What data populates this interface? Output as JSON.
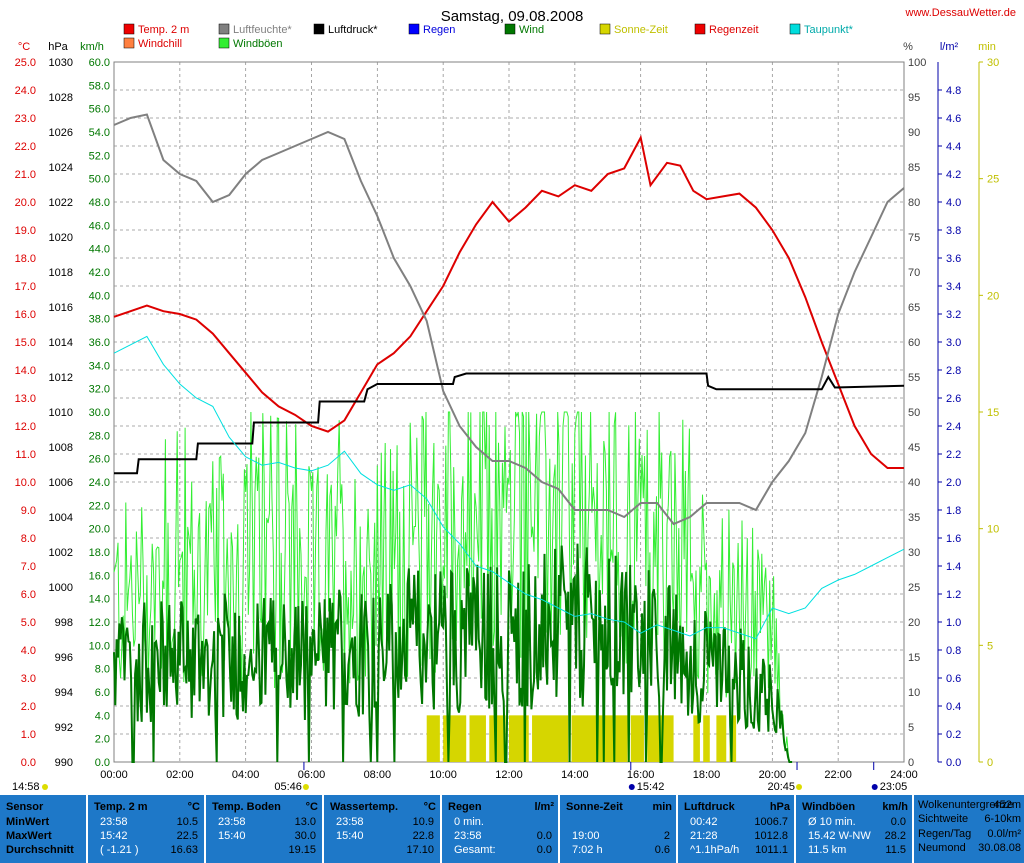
{
  "header": {
    "title": "Samstag, 09.08.2008",
    "site": "www.DessauWetter.de"
  },
  "colors": {
    "temp": "#dd0000",
    "humidity": "#808080",
    "pressure": "#000000",
    "rain": "#0000ff",
    "wind": "#007700",
    "gust": "#33ee33",
    "sun": "#d6d600",
    "dewpoint": "#00e0e0",
    "windchill": "#ff8040",
    "table_bg": "#1e78c8",
    "grid": "#808080"
  },
  "legend": [
    {
      "label": "Temp. 2 m",
      "color": "#ee0000",
      "text_color": "#dd0000"
    },
    {
      "label": "Luftfeuchte*",
      "color": "#808080",
      "text_color": "#808080"
    },
    {
      "label": "Luftdruck*",
      "color": "#000000",
      "text_color": "#000000"
    },
    {
      "label": "Regen",
      "color": "#0000ff",
      "text_color": "#0000dd"
    },
    {
      "label": "Wind",
      "color": "#007700",
      "text_color": "#007700"
    },
    {
      "label": "Sonne-Zeit",
      "color": "#d6d600",
      "text_color": "#c0c000"
    },
    {
      "label": "Regenzeit",
      "color": "#ee0000",
      "text_color": "#dd0000"
    },
    {
      "label": "Taupunkt*",
      "color": "#00dddd",
      "text_color": "#00aaaa"
    },
    {
      "label": "Windchill",
      "color": "#ff8040",
      "text_color": "#dd0000"
    },
    {
      "label": "Windböen",
      "color": "#33ee33",
      "text_color": "#007700"
    }
  ],
  "chart_data": {
    "type": "line",
    "x_ticks": [
      "00:00",
      "02:00",
      "04:00",
      "06:00",
      "08:00",
      "10:00",
      "12:00",
      "14:00",
      "16:00",
      "18:00",
      "20:00",
      "22:00",
      "24:00"
    ],
    "axes": {
      "temp": {
        "unit": "°C",
        "min": 0.0,
        "max": 25.0,
        "step": 1.0,
        "decimals": 1,
        "color": "#dd0000"
      },
      "pressure": {
        "unit": "hPa",
        "min": 990,
        "max": 1030,
        "step": 2,
        "decimals": 0,
        "color": "#000000"
      },
      "wind": {
        "unit": "km/h",
        "min": 0.0,
        "max": 60.0,
        "step": 2.0,
        "decimals": 1,
        "color": "#007700"
      },
      "humidity": {
        "unit": "%",
        "min": 0,
        "max": 100,
        "step": 5,
        "decimals": 0,
        "color": "#404040"
      },
      "rain": {
        "unit": "l/m²",
        "min": 0.0,
        "max": 5.0,
        "step": 0.2,
        "decimals": 1,
        "color": "#0000aa"
      },
      "sun": {
        "unit": "min",
        "min": 0,
        "max": 30,
        "step": 5,
        "decimals": 0,
        "color": "#c0c000"
      }
    },
    "series": [
      {
        "name": "Temp. 2 m",
        "axis": "temp",
        "color": "#dd0000",
        "points": [
          [
            0,
            15.9
          ],
          [
            0.5,
            16.1
          ],
          [
            1,
            16.3
          ],
          [
            1.5,
            16.1
          ],
          [
            2,
            16.0
          ],
          [
            2.5,
            15.8
          ],
          [
            3,
            15.3
          ],
          [
            3.5,
            14.6
          ],
          [
            4,
            13.9
          ],
          [
            4.5,
            13.2
          ],
          [
            5,
            12.7
          ],
          [
            5.5,
            12.4
          ],
          [
            6,
            12.0
          ],
          [
            6.5,
            11.8
          ],
          [
            7,
            12.2
          ],
          [
            7.5,
            13.2
          ],
          [
            8,
            14.2
          ],
          [
            8.5,
            14.6
          ],
          [
            9,
            15.2
          ],
          [
            9.5,
            16.1
          ],
          [
            10,
            17.0
          ],
          [
            10.5,
            18.2
          ],
          [
            11,
            19.2
          ],
          [
            11.5,
            20.0
          ],
          [
            12,
            19.3
          ],
          [
            12.5,
            19.8
          ],
          [
            13,
            20.4
          ],
          [
            13.5,
            20.2
          ],
          [
            14,
            20.6
          ],
          [
            14.5,
            20.4
          ],
          [
            15,
            21.0
          ],
          [
            15.5,
            21.2
          ],
          [
            16,
            22.3
          ],
          [
            16.3,
            20.6
          ],
          [
            16.8,
            21.4
          ],
          [
            17.2,
            21.3
          ],
          [
            17.6,
            20.4
          ],
          [
            18,
            20.1
          ],
          [
            18.5,
            20.2
          ],
          [
            19,
            20.3
          ],
          [
            19.5,
            19.8
          ],
          [
            20,
            19.0
          ],
          [
            20.5,
            18.0
          ],
          [
            21,
            16.6
          ],
          [
            21.5,
            15.0
          ],
          [
            22,
            13.5
          ],
          [
            22.5,
            12.0
          ],
          [
            23,
            11.0
          ],
          [
            23.5,
            10.5
          ],
          [
            24,
            10.5
          ]
        ]
      },
      {
        "name": "Luftfeuchte*",
        "axis": "humidity",
        "color": "#808080",
        "points": [
          [
            0,
            91
          ],
          [
            0.5,
            92
          ],
          [
            1,
            92.5
          ],
          [
            1.5,
            86
          ],
          [
            2,
            84
          ],
          [
            2.5,
            83
          ],
          [
            3,
            80
          ],
          [
            3.5,
            81
          ],
          [
            4,
            84
          ],
          [
            4.5,
            86
          ],
          [
            5,
            87
          ],
          [
            5.5,
            88
          ],
          [
            6,
            89
          ],
          [
            6.5,
            90
          ],
          [
            7,
            89
          ],
          [
            7.5,
            83
          ],
          [
            8,
            78
          ],
          [
            8.5,
            72
          ],
          [
            9,
            68
          ],
          [
            9.5,
            63
          ],
          [
            10,
            53
          ],
          [
            10.5,
            48
          ],
          [
            11,
            45
          ],
          [
            11.5,
            43
          ],
          [
            12,
            43
          ],
          [
            12.5,
            42
          ],
          [
            13,
            40
          ],
          [
            13.5,
            39
          ],
          [
            14,
            36
          ],
          [
            14.5,
            36
          ],
          [
            15,
            36
          ],
          [
            15.5,
            35
          ],
          [
            16,
            37
          ],
          [
            16.5,
            37
          ],
          [
            17,
            34
          ],
          [
            17.5,
            35
          ],
          [
            18,
            37
          ],
          [
            18.5,
            37
          ],
          [
            19,
            37
          ],
          [
            19.5,
            36
          ],
          [
            20,
            40
          ],
          [
            20.5,
            43
          ],
          [
            21,
            47
          ],
          [
            21.5,
            55
          ],
          [
            22,
            64
          ],
          [
            22.5,
            70
          ],
          [
            23,
            75
          ],
          [
            23.5,
            80
          ],
          [
            24,
            82
          ]
        ]
      },
      {
        "name": "Luftdruck*",
        "axis": "pressure",
        "color": "#000000",
        "points": [
          [
            0,
            1006.5
          ],
          [
            0.7,
            1006.5
          ],
          [
            0.75,
            1007.3
          ],
          [
            2.5,
            1007.3
          ],
          [
            2.55,
            1008.2
          ],
          [
            4.2,
            1008.2
          ],
          [
            4.25,
            1009.4
          ],
          [
            6.2,
            1009.4
          ],
          [
            6.25,
            1010.6
          ],
          [
            7.6,
            1010.6
          ],
          [
            7.7,
            1011.3
          ],
          [
            8,
            1011.6
          ],
          [
            10.3,
            1011.6
          ],
          [
            10.35,
            1012.0
          ],
          [
            10.7,
            1012.2
          ],
          [
            18,
            1012.2
          ],
          [
            18.05,
            1011.5
          ],
          [
            18.3,
            1011.3
          ],
          [
            21.5,
            1011.3
          ],
          [
            21.7,
            1012.0
          ],
          [
            21.9,
            1011.4
          ],
          [
            24,
            1011.5
          ]
        ]
      },
      {
        "name": "Taupunkt*",
        "axis": "temp",
        "color": "#00e0e0",
        "points": [
          [
            0,
            14.6
          ],
          [
            0.5,
            14.9
          ],
          [
            1,
            15.2
          ],
          [
            1.5,
            14.2
          ],
          [
            2,
            13.5
          ],
          [
            2.5,
            13.0
          ],
          [
            3,
            12.7
          ],
          [
            3.5,
            11.6
          ],
          [
            4,
            10.9
          ],
          [
            4.5,
            10.6
          ],
          [
            5,
            10.7
          ],
          [
            5.5,
            10.5
          ],
          [
            6,
            10.4
          ],
          [
            6.5,
            10.6
          ],
          [
            7,
            11.1
          ],
          [
            7.5,
            10.3
          ],
          [
            8,
            9.9
          ],
          [
            8.5,
            9.7
          ],
          [
            9,
            9.9
          ],
          [
            9.5,
            9.4
          ],
          [
            10,
            8.4
          ],
          [
            10.5,
            7.8
          ],
          [
            11,
            7.0
          ],
          [
            11.5,
            6.8
          ],
          [
            12,
            6.4
          ],
          [
            12.5,
            6.0
          ],
          [
            13,
            5.8
          ],
          [
            13.5,
            5.5
          ],
          [
            14,
            5.2
          ],
          [
            14.5,
            5.3
          ],
          [
            15,
            5.1
          ],
          [
            15.5,
            5.0
          ],
          [
            16,
            4.6
          ],
          [
            16.5,
            4.9
          ],
          [
            17,
            4.7
          ],
          [
            17.5,
            4.5
          ],
          [
            18,
            4.8
          ],
          [
            18.5,
            4.8
          ],
          [
            19,
            4.6
          ],
          [
            19.5,
            4.4
          ],
          [
            20,
            5.5
          ],
          [
            20.5,
            5.3
          ],
          [
            21,
            5.5
          ],
          [
            21.5,
            6.2
          ],
          [
            22,
            6.5
          ],
          [
            22.5,
            6.7
          ],
          [
            23,
            7.0
          ],
          [
            23.5,
            7.3
          ],
          [
            24,
            7.6
          ]
        ]
      }
    ],
    "wind_profile": [
      [
        0,
        9
      ],
      [
        2,
        10
      ],
      [
        4,
        10
      ],
      [
        6,
        10
      ],
      [
        8,
        11
      ],
      [
        10,
        12
      ],
      [
        12,
        12
      ],
      [
        14,
        13
      ],
      [
        16,
        12
      ],
      [
        18,
        9
      ],
      [
        20,
        7
      ],
      [
        20.5,
        0
      ],
      [
        24,
        0
      ]
    ],
    "gust_profile": [
      [
        0,
        13
      ],
      [
        2,
        15
      ],
      [
        4,
        16
      ],
      [
        6,
        15
      ],
      [
        8,
        16
      ],
      [
        10,
        19
      ],
      [
        12,
        20
      ],
      [
        14,
        20
      ],
      [
        16,
        18
      ],
      [
        18,
        14
      ],
      [
        20,
        11
      ],
      [
        20.5,
        0
      ],
      [
        24,
        0
      ]
    ],
    "sunshine_intervals": [
      [
        9.5,
        9.9
      ],
      [
        10.0,
        10.7
      ],
      [
        10.8,
        11.3
      ],
      [
        11.4,
        11.9
      ],
      [
        12.0,
        12.6
      ],
      [
        12.7,
        13.8
      ],
      [
        13.9,
        15.6
      ],
      [
        15.7,
        16.1
      ],
      [
        16.2,
        17.0
      ],
      [
        17.6,
        17.8
      ],
      [
        17.9,
        18.1
      ],
      [
        18.3,
        18.6
      ],
      [
        18.7,
        18.9
      ]
    ],
    "markers": {
      "left_time": "14:58",
      "sunrise": {
        "t": 5.77,
        "label": "05:46"
      },
      "noon": {
        "t": 15.7,
        "label": "15:42"
      },
      "sunset": {
        "t": 20.75,
        "label": "20:45"
      },
      "moon": {
        "t": 23.08,
        "label": "23:05"
      }
    }
  },
  "table": {
    "row_labels": [
      "Sensor",
      "MinWert",
      "MaxWert",
      "Durchschnitt"
    ],
    "columns": [
      {
        "title": "Temp. 2 m",
        "unit": "°C",
        "rows": [
          [
            "23:58",
            "10.5"
          ],
          [
            "15:42",
            "22.5"
          ],
          [
            "( -1.21 )",
            "16.63"
          ]
        ]
      },
      {
        "title": "Temp. Boden",
        "unit": "°C",
        "rows": [
          [
            "23:58",
            "13.0"
          ],
          [
            "15:40",
            "30.0"
          ],
          [
            "",
            "19.15"
          ]
        ]
      },
      {
        "title": "Wassertemp.",
        "unit": "°C",
        "rows": [
          [
            "23:58",
            "10.9"
          ],
          [
            "15:40",
            "22.8"
          ],
          [
            "",
            "17.10"
          ]
        ]
      },
      {
        "title": "Regen",
        "unit": "l/m²",
        "rows": [
          [
            "0 min.",
            ""
          ],
          [
            "23:58",
            "0.0"
          ],
          [
            "Gesamt:",
            "0.0"
          ]
        ]
      },
      {
        "title": "Sonne-Zeit",
        "unit": "min",
        "rows": [
          [
            "",
            ""
          ],
          [
            "19:00",
            "2"
          ],
          [
            "7:02 h",
            "0.6"
          ]
        ]
      },
      {
        "title": "Luftdruck",
        "unit": "hPa",
        "rows": [
          [
            "00:42",
            "1006.7"
          ],
          [
            "21:28",
            "1012.8"
          ],
          [
            "^1.1hPa/h",
            "1011.1"
          ]
        ]
      },
      {
        "title": "Windböen",
        "unit": "km/h",
        "rows": [
          [
            "Ø 10 min.",
            "0.0"
          ],
          [
            "15.42  W-NW",
            "28.2"
          ],
          [
            "11.5 km",
            "11.5"
          ]
        ]
      }
    ],
    "info": [
      [
        "Wolkenuntergrenze",
        "452m"
      ],
      [
        "Sichtweite",
        "6-10km"
      ],
      [
        "Regen/Tag",
        "0.0l/m²"
      ],
      [
        "Neumond",
        "30.08.08"
      ]
    ]
  }
}
